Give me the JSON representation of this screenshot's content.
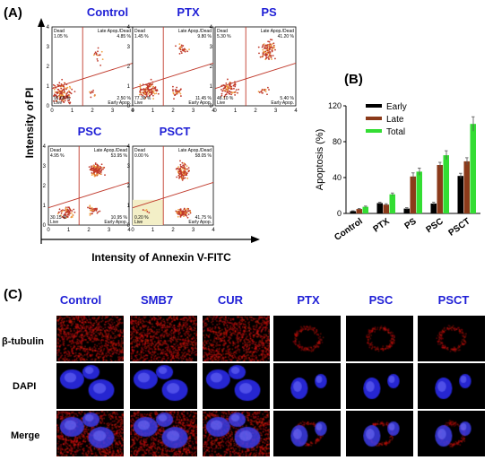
{
  "panels": {
    "a": "(A)",
    "b": "(B)",
    "c": "(C)"
  },
  "flow": {
    "y_axis_label": "Intensity of PI",
    "x_axis_label": "Intensity of Annexin V-FITC",
    "tick_labels_x": [
      "0",
      "1",
      "2",
      "3",
      "4"
    ],
    "tick_labels_y": [
      "0",
      "1",
      "2",
      "3",
      "4"
    ],
    "quad_labels": {
      "dead": "Dead",
      "late": "Late Apop./Dead",
      "live": "Live",
      "early": "Early Apop."
    },
    "plots": [
      {
        "title": "Control",
        "dead": "1.05 %",
        "late": "4.85 %",
        "live": "91.60 %",
        "early": "2.50 %"
      },
      {
        "title": "PTX",
        "dead": "1.45 %",
        "late": "9.80 %",
        "live": "77.30 %",
        "early": "11.45 %"
      },
      {
        "title": "PS",
        "dead": "5.30 %",
        "late": "41.20 %",
        "live": "48.10 %",
        "early": "5.40 %"
      },
      {
        "title": "PSC",
        "dead": "4.95 %",
        "late": "53.95 %",
        "live": "30.15 %",
        "early": "10.95 %"
      },
      {
        "title": "PSCT",
        "dead": "0.00 %",
        "late": "58.05 %",
        "live": "0.20 %",
        "early": "41.75 %"
      }
    ]
  },
  "chart_data": {
    "type": "bar",
    "categories": [
      "Control",
      "PTX",
      "PS",
      "PSC",
      "PSCT"
    ],
    "series": [
      {
        "name": "Early",
        "values": [
          2.5,
          11.5,
          5.4,
          11,
          41.8
        ],
        "color": "#000000"
      },
      {
        "name": "Late",
        "values": [
          4.9,
          9.8,
          41.2,
          54,
          58.1
        ],
        "color": "#8b3a1a"
      },
      {
        "name": "Total",
        "values": [
          7.4,
          21.3,
          46.6,
          64.9,
          99.8
        ],
        "color": "#33dd33"
      }
    ],
    "errors": [
      [
        0.5,
        1,
        1,
        1.5,
        3
      ],
      [
        0.5,
        1,
        4,
        3,
        4
      ],
      [
        0.8,
        1.5,
        4,
        5,
        8
      ]
    ],
    "ylabel": "Apoptosis (%)",
    "ylim": [
      0,
      120
    ],
    "yticks": [
      "0",
      "40",
      "80",
      "120"
    ],
    "legend": "top-right"
  },
  "micro": {
    "columns": [
      "Control",
      "SMB7",
      "CUR",
      "PTX",
      "PSC",
      "PSCT"
    ],
    "rows": [
      "β-tubulin",
      "DAPI",
      "Merge"
    ]
  },
  "colors": {
    "title_blue": "#1f1fd6",
    "gate_line": "#c0392b"
  }
}
